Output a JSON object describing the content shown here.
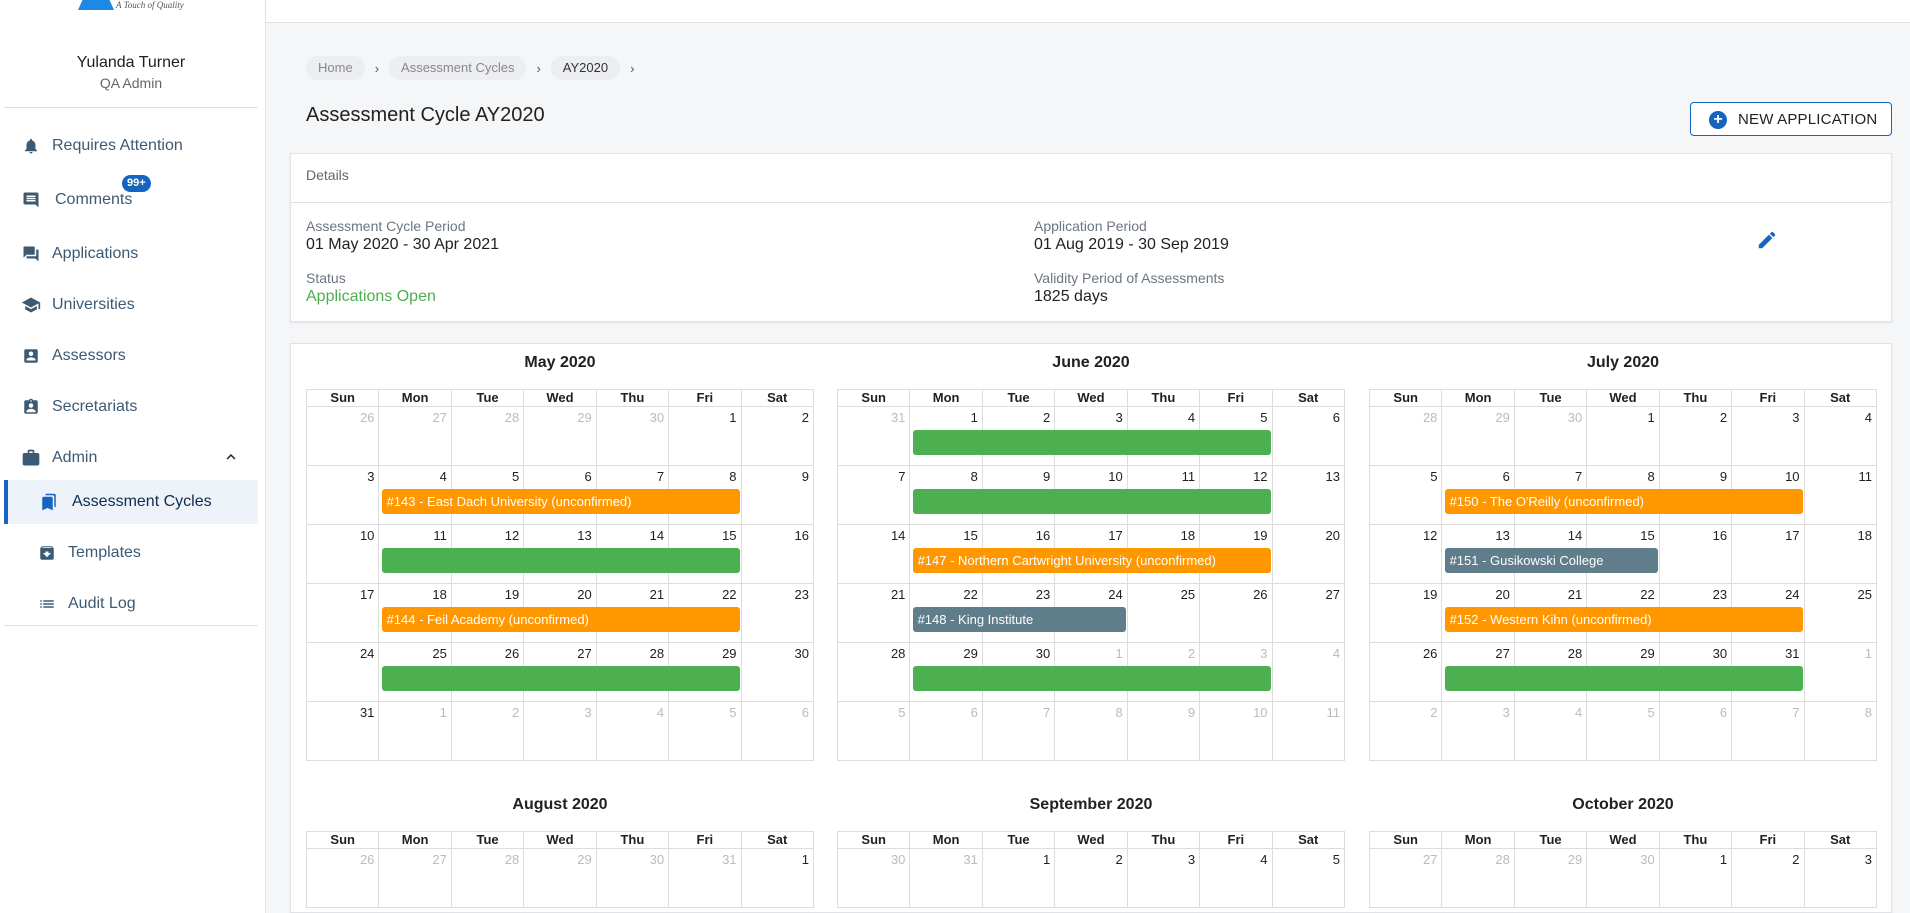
{
  "logo": {
    "tagline": "A Touch of Quality"
  },
  "user": {
    "name": "Yulanda Turner",
    "role": "QA Admin"
  },
  "sidebar": {
    "items": [
      {
        "label": "Requires Attention",
        "icon": "bell-icon"
      },
      {
        "label": "Comments",
        "icon": "comment-icon",
        "badge": "99+"
      },
      {
        "label": "Applications",
        "icon": "forum-icon"
      },
      {
        "label": "Universities",
        "icon": "school-icon"
      },
      {
        "label": "Assessors",
        "icon": "person-card-icon"
      },
      {
        "label": "Secretariats",
        "icon": "clipboard-person-icon"
      },
      {
        "label": "Admin",
        "icon": "briefcase-icon",
        "expanded": true
      }
    ],
    "sub_items": [
      {
        "label": "Assessment Cycles",
        "icon": "bookmark-icon",
        "active": true
      },
      {
        "label": "Templates",
        "icon": "archive-icon"
      },
      {
        "label": "Audit Log",
        "icon": "list-icon"
      }
    ]
  },
  "breadcrumb": [
    "Home",
    "Assessment Cycles",
    "AY2020"
  ],
  "page_title": "Assessment Cycle AY2020",
  "new_application_label": "NEW APPLICATION",
  "details": {
    "header": "Details",
    "cycle_period_label": "Assessment Cycle Period",
    "cycle_period_value": "01 May 2020 - 30 Apr 2021",
    "application_period_label": "Application Period",
    "application_period_value": "01 Aug 2019 - 30 Sep 2019",
    "status_label": "Status",
    "status_value": "Applications Open",
    "validity_label": "Validity Period of Assessments",
    "validity_value": "1825 days"
  },
  "weekdays": [
    "Sun",
    "Mon",
    "Tue",
    "Wed",
    "Thu",
    "Fri",
    "Sat"
  ],
  "colors": {
    "accent": "#1565c0",
    "green": "#4caf50",
    "orange": "#ff9800",
    "gray": "#607d8b"
  },
  "months": [
    {
      "title": "May 2020",
      "weeks": [
        [
          [
            26,
            1
          ],
          [
            27,
            1
          ],
          [
            28,
            1
          ],
          [
            29,
            1
          ],
          [
            30,
            1
          ],
          [
            1,
            0
          ],
          [
            2,
            0
          ]
        ],
        [
          [
            3,
            0
          ],
          [
            4,
            0
          ],
          [
            5,
            0
          ],
          [
            6,
            0
          ],
          [
            7,
            0
          ],
          [
            8,
            0
          ],
          [
            9,
            0
          ]
        ],
        [
          [
            10,
            0
          ],
          [
            11,
            0
          ],
          [
            12,
            0
          ],
          [
            13,
            0
          ],
          [
            14,
            0
          ],
          [
            15,
            0
          ],
          [
            16,
            0
          ]
        ],
        [
          [
            17,
            0
          ],
          [
            18,
            0
          ],
          [
            19,
            0
          ],
          [
            20,
            0
          ],
          [
            21,
            0
          ],
          [
            22,
            0
          ],
          [
            23,
            0
          ]
        ],
        [
          [
            24,
            0
          ],
          [
            25,
            0
          ],
          [
            26,
            0
          ],
          [
            27,
            0
          ],
          [
            28,
            0
          ],
          [
            29,
            0
          ],
          [
            30,
            0
          ]
        ],
        [
          [
            31,
            0
          ],
          [
            1,
            1
          ],
          [
            2,
            1
          ],
          [
            3,
            1
          ],
          [
            4,
            1
          ],
          [
            5,
            1
          ],
          [
            6,
            1
          ]
        ]
      ],
      "events": [
        {
          "week": 1,
          "start": 1,
          "end": 5,
          "color": "orange",
          "label": "#143 - East Dach University (unconfirmed)"
        },
        {
          "week": 2,
          "start": 1,
          "end": 5,
          "color": "green",
          "label": ""
        },
        {
          "week": 3,
          "start": 1,
          "end": 5,
          "color": "orange",
          "label": "#144 - Feil Academy (unconfirmed)"
        },
        {
          "week": 4,
          "start": 1,
          "end": 5,
          "color": "green",
          "label": ""
        }
      ]
    },
    {
      "title": "June 2020",
      "weeks": [
        [
          [
            31,
            1
          ],
          [
            1,
            0
          ],
          [
            2,
            0
          ],
          [
            3,
            0
          ],
          [
            4,
            0
          ],
          [
            5,
            0
          ],
          [
            6,
            0
          ]
        ],
        [
          [
            7,
            0
          ],
          [
            8,
            0
          ],
          [
            9,
            0
          ],
          [
            10,
            0
          ],
          [
            11,
            0
          ],
          [
            12,
            0
          ],
          [
            13,
            0
          ]
        ],
        [
          [
            14,
            0
          ],
          [
            15,
            0
          ],
          [
            16,
            0
          ],
          [
            17,
            0
          ],
          [
            18,
            0
          ],
          [
            19,
            0
          ],
          [
            20,
            0
          ]
        ],
        [
          [
            21,
            0
          ],
          [
            22,
            0
          ],
          [
            23,
            0
          ],
          [
            24,
            0
          ],
          [
            25,
            0
          ],
          [
            26,
            0
          ],
          [
            27,
            0
          ]
        ],
        [
          [
            28,
            0
          ],
          [
            29,
            0
          ],
          [
            30,
            0
          ],
          [
            1,
            1
          ],
          [
            2,
            1
          ],
          [
            3,
            1
          ],
          [
            4,
            1
          ]
        ],
        [
          [
            5,
            1
          ],
          [
            6,
            1
          ],
          [
            7,
            1
          ],
          [
            8,
            1
          ],
          [
            9,
            1
          ],
          [
            10,
            1
          ],
          [
            11,
            1
          ]
        ]
      ],
      "events": [
        {
          "week": 0,
          "start": 1,
          "end": 5,
          "color": "green",
          "label": ""
        },
        {
          "week": 1,
          "start": 1,
          "end": 5,
          "color": "green",
          "label": ""
        },
        {
          "week": 2,
          "start": 1,
          "end": 5,
          "color": "orange",
          "label": "#147 - Northern Cartwright University (unconfirmed)"
        },
        {
          "week": 3,
          "start": 1,
          "end": 3,
          "color": "gray",
          "label": "#148 - King Institute"
        },
        {
          "week": 4,
          "start": 1,
          "end": 5,
          "color": "green",
          "label": ""
        }
      ]
    },
    {
      "title": "July 2020",
      "weeks": [
        [
          [
            28,
            1
          ],
          [
            29,
            1
          ],
          [
            30,
            1
          ],
          [
            1,
            0
          ],
          [
            2,
            0
          ],
          [
            3,
            0
          ],
          [
            4,
            0
          ]
        ],
        [
          [
            5,
            0
          ],
          [
            6,
            0
          ],
          [
            7,
            0
          ],
          [
            8,
            0
          ],
          [
            9,
            0
          ],
          [
            10,
            0
          ],
          [
            11,
            0
          ]
        ],
        [
          [
            12,
            0
          ],
          [
            13,
            0
          ],
          [
            14,
            0
          ],
          [
            15,
            0
          ],
          [
            16,
            0
          ],
          [
            17,
            0
          ],
          [
            18,
            0
          ]
        ],
        [
          [
            19,
            0
          ],
          [
            20,
            0
          ],
          [
            21,
            0
          ],
          [
            22,
            0
          ],
          [
            23,
            0
          ],
          [
            24,
            0
          ],
          [
            25,
            0
          ]
        ],
        [
          [
            26,
            0
          ],
          [
            27,
            0
          ],
          [
            28,
            0
          ],
          [
            29,
            0
          ],
          [
            30,
            0
          ],
          [
            31,
            0
          ],
          [
            1,
            1
          ]
        ],
        [
          [
            2,
            1
          ],
          [
            3,
            1
          ],
          [
            4,
            1
          ],
          [
            5,
            1
          ],
          [
            6,
            1
          ],
          [
            7,
            1
          ],
          [
            8,
            1
          ]
        ]
      ],
      "events": [
        {
          "week": 1,
          "start": 1,
          "end": 5,
          "color": "orange",
          "label": "#150 - The O'Reilly (unconfirmed)"
        },
        {
          "week": 2,
          "start": 1,
          "end": 3,
          "color": "gray",
          "label": "#151 - Gusikowski College"
        },
        {
          "week": 3,
          "start": 1,
          "end": 5,
          "color": "orange",
          "label": "#152 - Western Kihn (unconfirmed)"
        },
        {
          "week": 4,
          "start": 1,
          "end": 5,
          "color": "green",
          "label": ""
        }
      ]
    },
    {
      "title": "August 2020",
      "weeks": [
        [
          [
            26,
            1
          ],
          [
            27,
            1
          ],
          [
            28,
            1
          ],
          [
            29,
            1
          ],
          [
            30,
            1
          ],
          [
            31,
            1
          ],
          [
            1,
            0
          ]
        ]
      ],
      "events": []
    },
    {
      "title": "September 2020",
      "weeks": [
        [
          [
            30,
            1
          ],
          [
            31,
            1
          ],
          [
            1,
            0
          ],
          [
            2,
            0
          ],
          [
            3,
            0
          ],
          [
            4,
            0
          ],
          [
            5,
            0
          ]
        ]
      ],
      "events": []
    },
    {
      "title": "October 2020",
      "weeks": [
        [
          [
            27,
            1
          ],
          [
            28,
            1
          ],
          [
            29,
            1
          ],
          [
            30,
            1
          ],
          [
            1,
            0
          ],
          [
            2,
            0
          ],
          [
            3,
            0
          ]
        ]
      ],
      "events": []
    }
  ]
}
